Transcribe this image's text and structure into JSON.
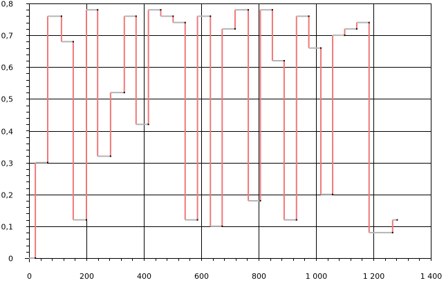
{
  "chart_data": {
    "type": "line",
    "style": "step",
    "title": "",
    "xlabel": "",
    "ylabel": "",
    "xlim": [
      0,
      1400
    ],
    "ylim": [
      0,
      0.8
    ],
    "grid": true,
    "x_ticks": [
      {
        "value": 0,
        "label": "0"
      },
      {
        "value": 200,
        "label": "200"
      },
      {
        "value": 400,
        "label": "400"
      },
      {
        "value": 600,
        "label": "600"
      },
      {
        "value": 800,
        "label": "800"
      },
      {
        "value": 1000,
        "label": "1 000"
      },
      {
        "value": 1200,
        "label": "1 200"
      },
      {
        "value": 1400,
        "label": "1 400"
      }
    ],
    "y_ticks": [
      {
        "value": 0,
        "label": "0"
      },
      {
        "value": 0.1,
        "label": "0,1"
      },
      {
        "value": 0.2,
        "label": "0,2"
      },
      {
        "value": 0.3,
        "label": "0,3"
      },
      {
        "value": 0.4,
        "label": "0,4"
      },
      {
        "value": 0.5,
        "label": "0,5"
      },
      {
        "value": 0.6,
        "label": "0,6"
      },
      {
        "value": 0.7,
        "label": "0,7"
      },
      {
        "value": 0.8,
        "label": "0,8"
      }
    ],
    "colors": {
      "horizontal_step": "#b4b4b4",
      "vertical_step": "#f07878",
      "grid": "#000000",
      "point": "#000000"
    },
    "series": [
      {
        "steps": [
          {
            "x0": 0,
            "x1": 22,
            "y": 0.0
          },
          {
            "x0": 22,
            "x1": 65,
            "y": 0.3
          },
          {
            "x0": 65,
            "x1": 113,
            "y": 0.76
          },
          {
            "x0": 113,
            "x1": 154,
            "y": 0.68
          },
          {
            "x0": 154,
            "x1": 200,
            "y": 0.12
          },
          {
            "x0": 200,
            "x1": 239,
            "y": 0.78
          },
          {
            "x0": 239,
            "x1": 284,
            "y": 0.32
          },
          {
            "x0": 284,
            "x1": 332,
            "y": 0.52
          },
          {
            "x0": 332,
            "x1": 373,
            "y": 0.76
          },
          {
            "x0": 373,
            "x1": 416,
            "y": 0.42
          },
          {
            "x0": 416,
            "x1": 459,
            "y": 0.78
          },
          {
            "x0": 459,
            "x1": 502,
            "y": 0.76
          },
          {
            "x0": 502,
            "x1": 544,
            "y": 0.74
          },
          {
            "x0": 544,
            "x1": 587,
            "y": 0.12
          },
          {
            "x0": 587,
            "x1": 632,
            "y": 0.76
          },
          {
            "x0": 632,
            "x1": 673,
            "y": 0.1
          },
          {
            "x0": 673,
            "x1": 718,
            "y": 0.72
          },
          {
            "x0": 718,
            "x1": 764,
            "y": 0.78
          },
          {
            "x0": 764,
            "x1": 806,
            "y": 0.18
          },
          {
            "x0": 806,
            "x1": 848,
            "y": 0.78
          },
          {
            "x0": 848,
            "x1": 889,
            "y": 0.62
          },
          {
            "x0": 889,
            "x1": 932,
            "y": 0.12
          },
          {
            "x0": 932,
            "x1": 975,
            "y": 0.76
          },
          {
            "x0": 975,
            "x1": 1017,
            "y": 0.66
          },
          {
            "x0": 1017,
            "x1": 1058,
            "y": 0.2
          },
          {
            "x0": 1058,
            "x1": 1100,
            "y": 0.7
          },
          {
            "x0": 1100,
            "x1": 1142,
            "y": 0.72
          },
          {
            "x0": 1142,
            "x1": 1185,
            "y": 0.74
          },
          {
            "x0": 1185,
            "x1": 1267,
            "y": 0.08
          },
          {
            "x0": 1267,
            "x1": 1283,
            "y": 0.12
          }
        ]
      }
    ]
  }
}
